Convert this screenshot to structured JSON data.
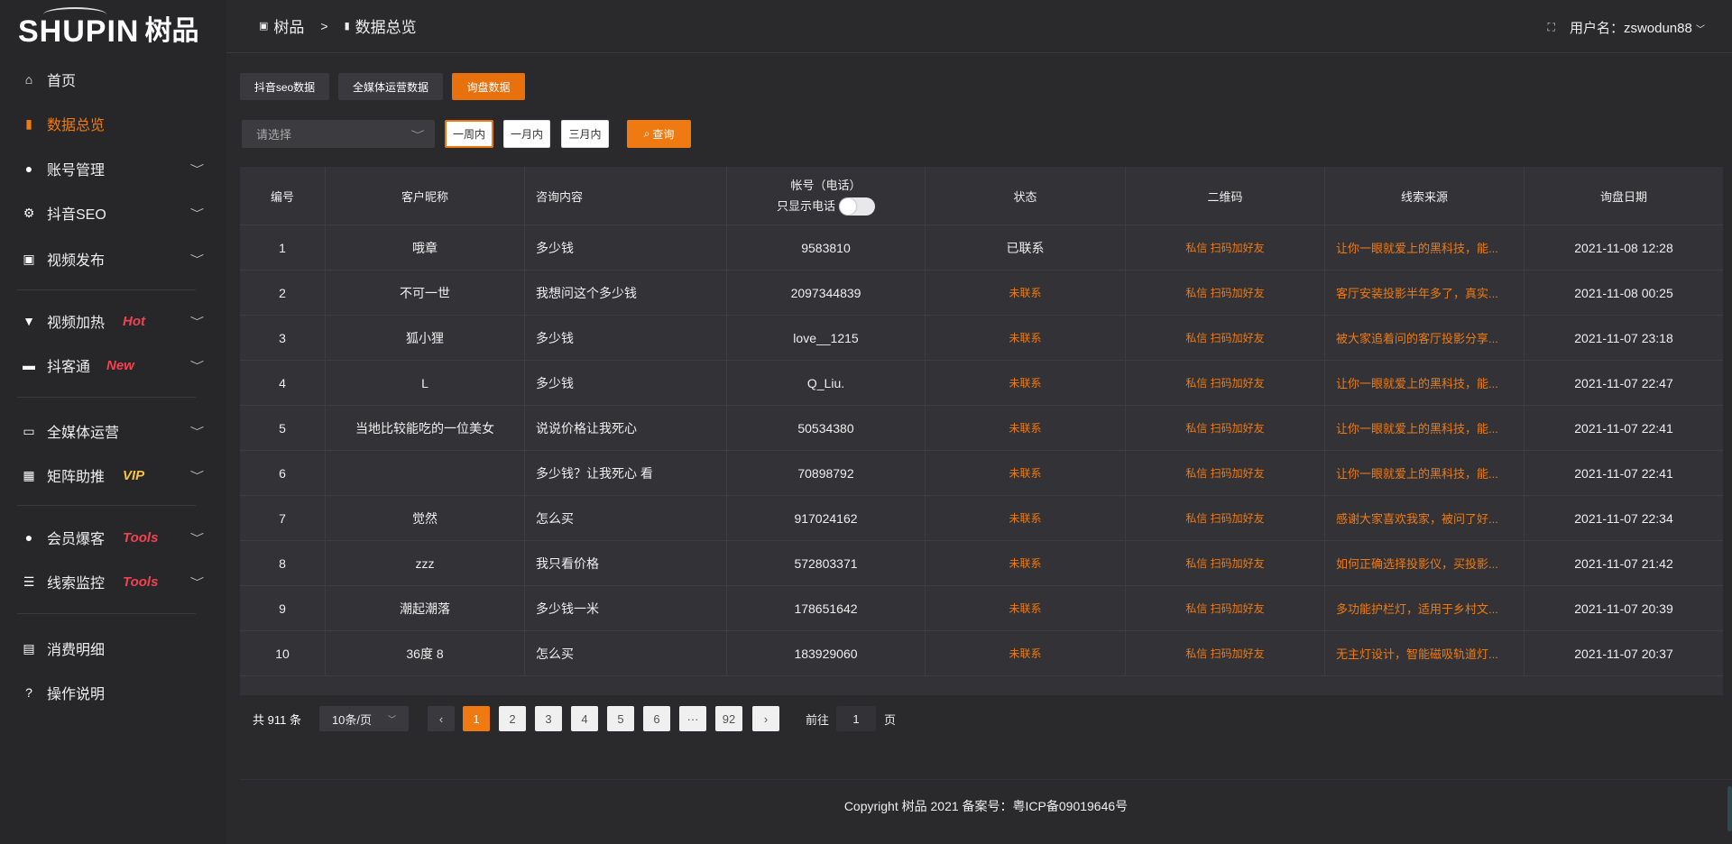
{
  "logo": {
    "en": "SHUPIN",
    "cn": "树品"
  },
  "sidebar": {
    "items": [
      {
        "label": "首页",
        "icon": "home-icon",
        "glyph": "⌂"
      },
      {
        "label": "数据总览",
        "icon": "bar-chart-icon",
        "glyph": "▮",
        "active": true
      },
      {
        "label": "账号管理",
        "icon": "user-icon",
        "glyph": "●",
        "chevron": true
      },
      {
        "label": "抖音SEO",
        "icon": "gear-icon",
        "glyph": "⚙",
        "chevron": true
      },
      {
        "label": "视频发布",
        "icon": "video-icon",
        "glyph": "▣",
        "chevron": true
      },
      {
        "label": "视频加热",
        "icon": "heat-icon",
        "glyph": "▼",
        "chevron": true,
        "tag": "Hot"
      },
      {
        "label": "抖客通",
        "icon": "chat-icon",
        "glyph": "▬",
        "chevron": true,
        "tag": "New"
      },
      {
        "label": "全媒体运营",
        "icon": "monitor-icon",
        "glyph": "▭",
        "chevron": true
      },
      {
        "label": "矩阵助推",
        "icon": "grid-icon",
        "glyph": "▦",
        "chevron": true,
        "tag": "VIP"
      },
      {
        "label": "会员爆客",
        "icon": "member-icon",
        "glyph": "●",
        "chevron": true,
        "tag": "Tools"
      },
      {
        "label": "线索监控",
        "icon": "sliders-icon",
        "glyph": "☰",
        "chevron": true,
        "tag": "Tools"
      },
      {
        "label": "消费明细",
        "icon": "wallet-icon",
        "glyph": "▤"
      },
      {
        "label": "操作说明",
        "icon": "help-icon",
        "glyph": "?"
      }
    ]
  },
  "header": {
    "crumb_home": "树品",
    "crumb_sep": ">",
    "crumb_current": "数据总览",
    "username": "用户名：zswodun88"
  },
  "tabs": [
    "抖音seo数据",
    "全媒体运营数据",
    "询盘数据"
  ],
  "filters": {
    "select_placeholder": "请选择",
    "ranges": [
      "一周内",
      "一月内",
      "三月内"
    ],
    "query": "查询"
  },
  "table": {
    "headers": [
      "编号",
      "客户昵称",
      "咨询内容",
      "帐号（电话）",
      "状态",
      "二维码",
      "线索来源",
      "询盘日期"
    ],
    "phone_toggle_label": "只显示电话",
    "rows": [
      [
        "1",
        "哦章",
        "多少钱",
        "9583810",
        "已联系",
        "私信 扫码加好友",
        "让你一眼就爱上的黑科技，能...",
        "2021-11-08 12:28"
      ],
      [
        "2",
        "不可一世",
        "我想问这个多少钱",
        "2097344839",
        "未联系",
        "私信 扫码加好友",
        "客厅安装投影半年多了，真实...",
        "2021-11-08 00:25"
      ],
      [
        "3",
        "狐小狸",
        "多少钱",
        "love__1215",
        "未联系",
        "私信 扫码加好友",
        "被大家追着问的客厅投影分享...",
        "2021-11-07 23:18"
      ],
      [
        "4",
        "L",
        "多少钱",
        "Q_Liu.",
        "未联系",
        "私信 扫码加好友",
        "让你一眼就爱上的黑科技，能...",
        "2021-11-07 22:47"
      ],
      [
        "5",
        "当地比较能吃的一位美女",
        "说说价格让我死心",
        "50534380",
        "未联系",
        "私信 扫码加好友",
        "让你一眼就爱上的黑科技，能...",
        "2021-11-07 22:41"
      ],
      [
        "6",
        "",
        "多少钱？让我死心 看",
        "70898792",
        "未联系",
        "私信 扫码加好友",
        "让你一眼就爱上的黑科技，能...",
        "2021-11-07 22:41"
      ],
      [
        "7",
        "觉然",
        "怎么买",
        "917024162",
        "未联系",
        "私信 扫码加好友",
        "感谢大家喜欢我家，被问了好...",
        "2021-11-07 22:34"
      ],
      [
        "8",
        "zzz",
        "我只看价格",
        "572803371",
        "未联系",
        "私信 扫码加好友",
        "如何正确选择投影仪，买投影...",
        "2021-11-07 21:42"
      ],
      [
        "9",
        "潮起潮落",
        "多少钱一米",
        "178651642",
        "未联系",
        "私信 扫码加好友",
        "多功能护栏灯，适用于乡村文...",
        "2021-11-07 20:39"
      ],
      [
        "10",
        "36度 8",
        "怎么买",
        "183929060",
        "未联系",
        "私信 扫码加好友",
        "无主灯设计，智能磁吸轨道灯...",
        "2021-11-07 20:37"
      ]
    ]
  },
  "pagination": {
    "total": "共 911 条",
    "page_size": "10条/页",
    "pages": [
      "1",
      "2",
      "3",
      "4",
      "5",
      "6",
      "···",
      "92"
    ],
    "current": "1",
    "goto_label": "前往",
    "goto_value": "1",
    "goto_suffix": "页"
  },
  "footer": {
    "copyright": "Copyright 树品 2021 备案号：粤ICP备09019646号"
  },
  "colors": {
    "accent": "#f07a12",
    "tag_red": "#f0434f",
    "tag_vip": "#f5c342"
  }
}
